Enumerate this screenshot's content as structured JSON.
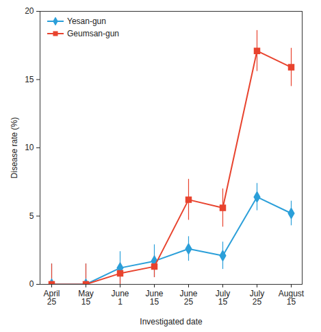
{
  "chart_data": {
    "type": "line",
    "x_label": "Investigated date",
    "y_label": "Disease rate (%)",
    "categories": [
      "April 25",
      "May 15",
      "June 1",
      "June 15",
      "June 25",
      "July 15",
      "July 25",
      "August 15"
    ],
    "series": [
      {
        "name": "Yesan-gun",
        "color": "#2b9fd9",
        "marker": "diamond",
        "values": [
          0,
          0,
          1.2,
          1.7,
          2.6,
          2.1,
          6.4,
          5.2
        ],
        "error": [
          1.5,
          1.5,
          1.2,
          1.2,
          0.9,
          1.0,
          1.0,
          0.9
        ]
      },
      {
        "name": "Geumsan-gun",
        "color": "#e8432e",
        "marker": "square",
        "values": [
          0,
          0,
          0.8,
          1.3,
          6.2,
          5.6,
          17.1,
          15.9
        ],
        "error": [
          1.5,
          1.5,
          0.8,
          0.8,
          1.5,
          1.4,
          1.5,
          1.4
        ]
      }
    ],
    "ylim": [
      0,
      20
    ],
    "yticks": [
      0,
      5,
      10,
      15,
      20
    ],
    "grid": false,
    "legend": "top-left"
  }
}
